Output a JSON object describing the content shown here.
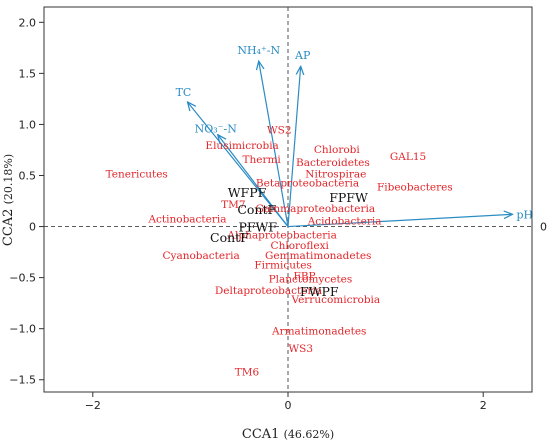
{
  "chart_data": {
    "type": "scatter",
    "xlabel": "CCA1",
    "xlabel_pct": "(46.62%)",
    "ylabel": "CCA2",
    "ylabel_pct": "(20.18%)",
    "xlim": [
      -2.5,
      2.5
    ],
    "ylim": [
      -1.62,
      2.15
    ],
    "xticks": [
      -2,
      0,
      2
    ],
    "yticks": [
      -1.5,
      -1.0,
      -0.5,
      0,
      0.5,
      1.0,
      1.5,
      2.0
    ],
    "ytick_labels": [
      "-1.5",
      "-1.0",
      "-0.5",
      "0",
      "0.5",
      "1.0",
      "1.5",
      "2.0"
    ],
    "zero_line_label": "0",
    "colors": {
      "taxa": "#e3262b",
      "sites": "#111111",
      "env": "#2b8cc4"
    },
    "env_vectors": [
      {
        "label": "NH₄⁺-N",
        "x": -0.3,
        "y": 1.62
      },
      {
        "label": "AP",
        "x": 0.13,
        "y": 1.57
      },
      {
        "label": "TC",
        "x": -1.03,
        "y": 1.22
      },
      {
        "label": "NO₃⁻-N",
        "x": -0.72,
        "y": 0.9
      },
      {
        "label": "pH",
        "x": 2.3,
        "y": 0.12
      }
    ],
    "sites": [
      {
        "label": "WFPF",
        "x": -0.42,
        "y": 0.33
      },
      {
        "label": "FPFW",
        "x": 0.62,
        "y": 0.28
      },
      {
        "label": "ContF",
        "x": -0.32,
        "y": 0.16
      },
      {
        "label": "PFWF",
        "x": -0.31,
        "y": -0.01
      },
      {
        "label": "ContF",
        "x": -0.6,
        "y": -0.11
      },
      {
        "label": "FWPF",
        "x": 0.32,
        "y": -0.64
      }
    ],
    "taxa": [
      {
        "label": "WS2",
        "x": -0.09,
        "y": 0.95
      },
      {
        "label": "Elusimicrobia",
        "x": -0.47,
        "y": 0.8
      },
      {
        "label": "Chlorobi",
        "x": 0.5,
        "y": 0.76
      },
      {
        "label": "GAL15",
        "x": 1.23,
        "y": 0.69
      },
      {
        "label": "Thermi",
        "x": -0.27,
        "y": 0.66
      },
      {
        "label": "Bacteroidetes",
        "x": 0.46,
        "y": 0.63
      },
      {
        "label": "Nitrospirae",
        "x": 0.49,
        "y": 0.52
      },
      {
        "label": "Tenericutes",
        "x": -1.55,
        "y": 0.52
      },
      {
        "label": "Fibeobacteres",
        "x": 1.3,
        "y": 0.39
      },
      {
        "label": "Betaproteobacteria",
        "x": 0.2,
        "y": 0.43
      },
      {
        "label": "TM7",
        "x": -0.56,
        "y": 0.22
      },
      {
        "label": "Gammaproteobacteria",
        "x": 0.28,
        "y": 0.18
      },
      {
        "label": "Actinobacteria",
        "x": -1.03,
        "y": 0.08
      },
      {
        "label": "Acidobacteria",
        "x": 0.58,
        "y": 0.06
      },
      {
        "label": "Alphaproteobacteria",
        "x": -0.06,
        "y": -0.08
      },
      {
        "label": "Chloroflexi",
        "x": 0.12,
        "y": -0.18
      },
      {
        "label": "Cyanobacteria",
        "x": -0.89,
        "y": -0.28
      },
      {
        "label": "Gemmatimonadetes",
        "x": 0.31,
        "y": -0.28
      },
      {
        "label": "Firmicutes",
        "x": -0.05,
        "y": -0.37
      },
      {
        "label": "FBP",
        "x": 0.17,
        "y": -0.48
      },
      {
        "label": "Planctomycetes",
        "x": 0.23,
        "y": -0.51
      },
      {
        "label": "Deltaproteobacteria",
        "x": -0.2,
        "y": -0.62
      },
      {
        "label": "Verrucomicrobia",
        "x": 0.49,
        "y": -0.71
      },
      {
        "label": "Armatimonadetes",
        "x": 0.32,
        "y": -1.02
      },
      {
        "label": "WS3",
        "x": 0.13,
        "y": -1.19
      },
      {
        "label": "TM6",
        "x": -0.42,
        "y": -1.42
      }
    ]
  }
}
